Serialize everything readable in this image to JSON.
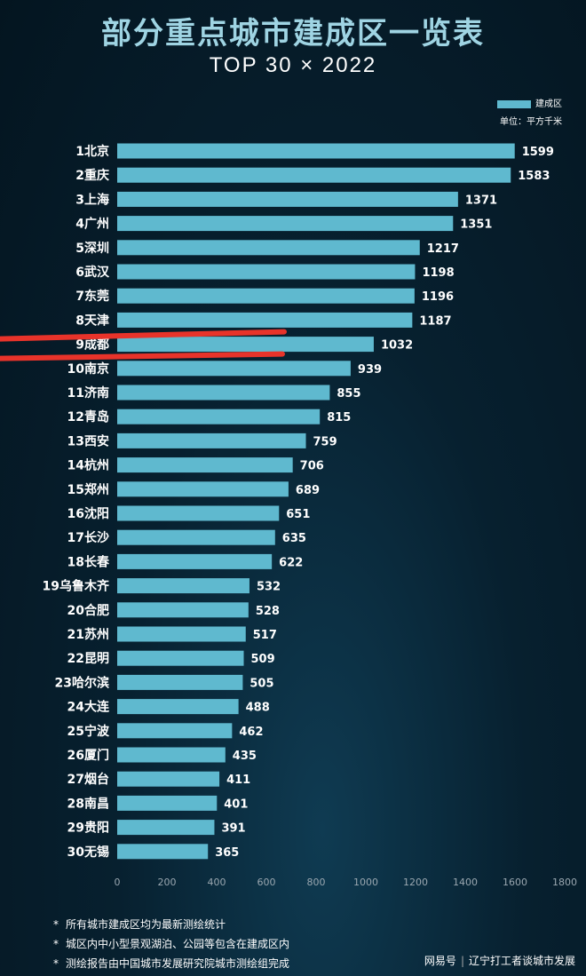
{
  "title": "部分重点城市建成区一览表",
  "subtitle": "TOP 30 × 2022",
  "legend": {
    "series_label": "建成区",
    "unit": "单位：平方千米"
  },
  "footnotes": [
    "所有城市建成区均为最新测绘统计",
    "城区内中小型景观湖泊、公园等包含在建成区内",
    "测绘报告由中国城市发展研究院城市测绘组完成"
  ],
  "watermark": {
    "source": "网易号",
    "author": "辽宁打工者谈城市发展"
  },
  "colors": {
    "bar": "#5fb9cf",
    "highlight_line": "#e8332a",
    "title": "#9fd4e3"
  },
  "chart_data": {
    "type": "bar",
    "orientation": "horizontal",
    "categories": [
      "1北京",
      "2重庆",
      "3上海",
      "4广州",
      "5深圳",
      "6武汉",
      "7东莞",
      "8天津",
      "9成都",
      "10南京",
      "11济南",
      "12青岛",
      "13西安",
      "14杭州",
      "15郑州",
      "16沈阳",
      "17长沙",
      "18长春",
      "19乌鲁木齐",
      "20合肥",
      "21苏州",
      "22昆明",
      "23哈尔滨",
      "24大连",
      "25宁波",
      "26厦门",
      "27烟台",
      "28南昌",
      "29贵阳",
      "30无锡"
    ],
    "series": [
      {
        "name": "建成区",
        "values": [
          1599,
          1583,
          1371,
          1351,
          1217,
          1198,
          1196,
          1187,
          1032,
          939,
          855,
          815,
          759,
          706,
          689,
          651,
          635,
          622,
          532,
          528,
          517,
          509,
          505,
          488,
          462,
          435,
          411,
          401,
          391,
          365
        ]
      }
    ],
    "xlim": [
      0,
      1800
    ],
    "xticks": [
      0,
      200,
      400,
      600,
      800,
      1000,
      1200,
      1400,
      1600,
      1800
    ],
    "grid": false,
    "legend_position": "top-right",
    "highlight_category": "9成都"
  }
}
